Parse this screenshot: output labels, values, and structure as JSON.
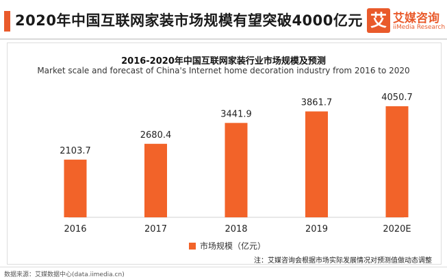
{
  "header": {
    "title": "2020年中国互联网家装市场规模有望突破4000亿元",
    "brand_mark": "艾",
    "brand_name": "艾媒咨询",
    "brand_sub": "iiMedia Research"
  },
  "chart_data": {
    "type": "bar",
    "title": "2016-2020年中国互联网家装行业市场规模及预测",
    "subtitle": "Market scale and forecast of China's Internet home decoration industry from 2016 to 2020",
    "categories": [
      "2016",
      "2017",
      "2018",
      "2019",
      "2020E"
    ],
    "series": [
      {
        "name": "市场规模（亿元）",
        "values": [
          2103.7,
          2680.4,
          3441.9,
          3861.7,
          4050.7
        ]
      }
    ],
    "value_labels": [
      "2103.7",
      "2680.4",
      "3441.9",
      "3861.7",
      "4050.7"
    ],
    "ylim": [
      0,
      5000
    ],
    "grid": false,
    "legend_position": "bottom",
    "bar_color": "#f26329"
  },
  "footer": {
    "note": "注：艾媒咨询会根据市场实际发展情况对预测值做动态调整",
    "source": "数据来源：艾媒数据中心(data.iimedia.cn)"
  }
}
